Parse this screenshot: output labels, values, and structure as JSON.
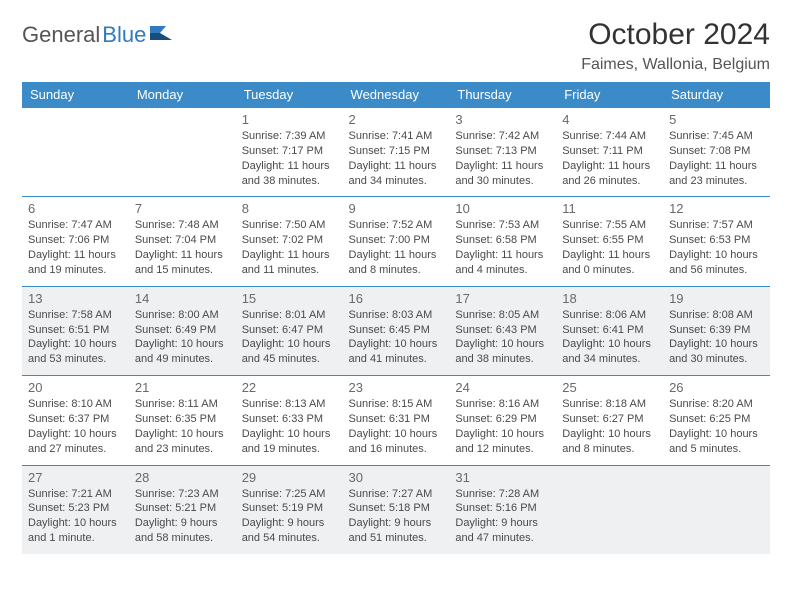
{
  "brand": {
    "part1": "General",
    "part2": "Blue"
  },
  "title": "October 2024",
  "location": "Faimes, Wallonia, Belgium",
  "colors": {
    "header_bg": "#3b8bc9",
    "header_fg": "#ffffff",
    "row_border": "#3b8bc9",
    "shaded_row": "#eef0f2",
    "text": "#333333",
    "logo_blue": "#2f7bbf"
  },
  "weekdays": [
    "Sunday",
    "Monday",
    "Tuesday",
    "Wednesday",
    "Thursday",
    "Friday",
    "Saturday"
  ],
  "weeks": [
    {
      "shaded": false,
      "days": [
        null,
        null,
        {
          "n": "1",
          "sunrise": "7:39 AM",
          "sunset": "7:17 PM",
          "daylight": "11 hours and 38 minutes."
        },
        {
          "n": "2",
          "sunrise": "7:41 AM",
          "sunset": "7:15 PM",
          "daylight": "11 hours and 34 minutes."
        },
        {
          "n": "3",
          "sunrise": "7:42 AM",
          "sunset": "7:13 PM",
          "daylight": "11 hours and 30 minutes."
        },
        {
          "n": "4",
          "sunrise": "7:44 AM",
          "sunset": "7:11 PM",
          "daylight": "11 hours and 26 minutes."
        },
        {
          "n": "5",
          "sunrise": "7:45 AM",
          "sunset": "7:08 PM",
          "daylight": "11 hours and 23 minutes."
        }
      ]
    },
    {
      "shaded": false,
      "days": [
        {
          "n": "6",
          "sunrise": "7:47 AM",
          "sunset": "7:06 PM",
          "daylight": "11 hours and 19 minutes."
        },
        {
          "n": "7",
          "sunrise": "7:48 AM",
          "sunset": "7:04 PM",
          "daylight": "11 hours and 15 minutes."
        },
        {
          "n": "8",
          "sunrise": "7:50 AM",
          "sunset": "7:02 PM",
          "daylight": "11 hours and 11 minutes."
        },
        {
          "n": "9",
          "sunrise": "7:52 AM",
          "sunset": "7:00 PM",
          "daylight": "11 hours and 8 minutes."
        },
        {
          "n": "10",
          "sunrise": "7:53 AM",
          "sunset": "6:58 PM",
          "daylight": "11 hours and 4 minutes."
        },
        {
          "n": "11",
          "sunrise": "7:55 AM",
          "sunset": "6:55 PM",
          "daylight": "11 hours and 0 minutes."
        },
        {
          "n": "12",
          "sunrise": "7:57 AM",
          "sunset": "6:53 PM",
          "daylight": "10 hours and 56 minutes."
        }
      ]
    },
    {
      "shaded": true,
      "days": [
        {
          "n": "13",
          "sunrise": "7:58 AM",
          "sunset": "6:51 PM",
          "daylight": "10 hours and 53 minutes."
        },
        {
          "n": "14",
          "sunrise": "8:00 AM",
          "sunset": "6:49 PM",
          "daylight": "10 hours and 49 minutes."
        },
        {
          "n": "15",
          "sunrise": "8:01 AM",
          "sunset": "6:47 PM",
          "daylight": "10 hours and 45 minutes."
        },
        {
          "n": "16",
          "sunrise": "8:03 AM",
          "sunset": "6:45 PM",
          "daylight": "10 hours and 41 minutes."
        },
        {
          "n": "17",
          "sunrise": "8:05 AM",
          "sunset": "6:43 PM",
          "daylight": "10 hours and 38 minutes."
        },
        {
          "n": "18",
          "sunrise": "8:06 AM",
          "sunset": "6:41 PM",
          "daylight": "10 hours and 34 minutes."
        },
        {
          "n": "19",
          "sunrise": "8:08 AM",
          "sunset": "6:39 PM",
          "daylight": "10 hours and 30 minutes."
        }
      ]
    },
    {
      "shaded": false,
      "days": [
        {
          "n": "20",
          "sunrise": "8:10 AM",
          "sunset": "6:37 PM",
          "daylight": "10 hours and 27 minutes."
        },
        {
          "n": "21",
          "sunrise": "8:11 AM",
          "sunset": "6:35 PM",
          "daylight": "10 hours and 23 minutes."
        },
        {
          "n": "22",
          "sunrise": "8:13 AM",
          "sunset": "6:33 PM",
          "daylight": "10 hours and 19 minutes."
        },
        {
          "n": "23",
          "sunrise": "8:15 AM",
          "sunset": "6:31 PM",
          "daylight": "10 hours and 16 minutes."
        },
        {
          "n": "24",
          "sunrise": "8:16 AM",
          "sunset": "6:29 PM",
          "daylight": "10 hours and 12 minutes."
        },
        {
          "n": "25",
          "sunrise": "8:18 AM",
          "sunset": "6:27 PM",
          "daylight": "10 hours and 8 minutes."
        },
        {
          "n": "26",
          "sunrise": "8:20 AM",
          "sunset": "6:25 PM",
          "daylight": "10 hours and 5 minutes."
        }
      ]
    },
    {
      "shaded": true,
      "days": [
        {
          "n": "27",
          "sunrise": "7:21 AM",
          "sunset": "5:23 PM",
          "daylight": "10 hours and 1 minute."
        },
        {
          "n": "28",
          "sunrise": "7:23 AM",
          "sunset": "5:21 PM",
          "daylight": "9 hours and 58 minutes."
        },
        {
          "n": "29",
          "sunrise": "7:25 AM",
          "sunset": "5:19 PM",
          "daylight": "9 hours and 54 minutes."
        },
        {
          "n": "30",
          "sunrise": "7:27 AM",
          "sunset": "5:18 PM",
          "daylight": "9 hours and 51 minutes."
        },
        {
          "n": "31",
          "sunrise": "7:28 AM",
          "sunset": "5:16 PM",
          "daylight": "9 hours and 47 minutes."
        },
        null,
        null
      ]
    }
  ],
  "labels": {
    "sunrise": "Sunrise:",
    "sunset": "Sunset:",
    "daylight": "Daylight:"
  }
}
